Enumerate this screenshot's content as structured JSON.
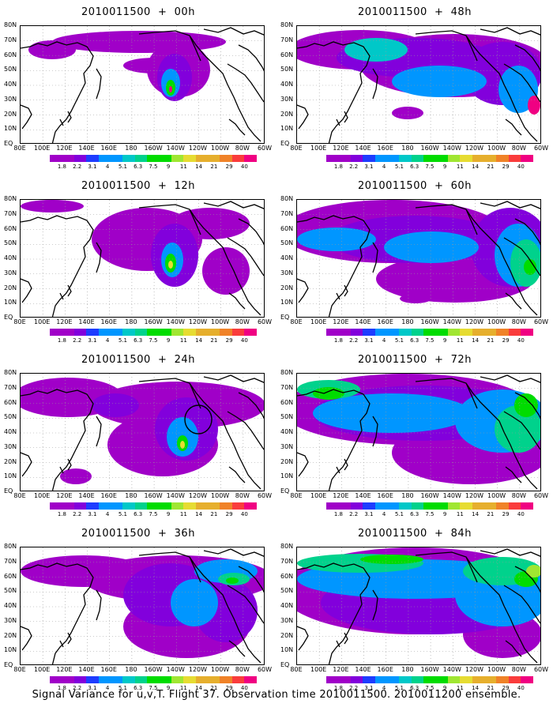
{
  "caption": "Signal Variance for u,v,T. Flight 37. Observation time 2010011500. 2010011200 ensemble.",
  "lat_labels": [
    "80N",
    "70N",
    "60N",
    "50N",
    "40N",
    "30N",
    "20N",
    "10N",
    "EQ"
  ],
  "lon_labels": [
    "80E",
    "100E",
    "120E",
    "140E",
    "160E",
    "180",
    "160W",
    "140W",
    "120W",
    "100W",
    "80W",
    "60W"
  ],
  "legend": {
    "levels": [
      "1.8",
      "2.2",
      "3.1",
      "4",
      "5.1",
      "6.3",
      "7.5",
      "9",
      "11",
      "14",
      "21",
      "29",
      "40"
    ],
    "colors": [
      "#a000c8",
      "#8200dc",
      "#1e3cff",
      "#0096ff",
      "#00c8c8",
      "#00d28c",
      "#00dc00",
      "#a0e632",
      "#e6dc32",
      "#e6af2d",
      "#f08228",
      "#fa3c3c",
      "#f00082"
    ]
  },
  "panels": [
    {
      "title": "2010011500 + 00h",
      "fill_level": 0
    },
    {
      "title": "2010011500 + 12h",
      "fill_level": 1
    },
    {
      "title": "2010011500 + 24h",
      "fill_level": 2
    },
    {
      "title": "2010011500 + 36h",
      "fill_level": 3
    },
    {
      "title": "2010011500 + 48h",
      "fill_level": 4
    },
    {
      "title": "2010011500 + 60h",
      "fill_level": 5
    },
    {
      "title": "2010011500 + 72h",
      "fill_level": 6
    },
    {
      "title": "2010011500 + 84h",
      "fill_level": 7
    }
  ]
}
